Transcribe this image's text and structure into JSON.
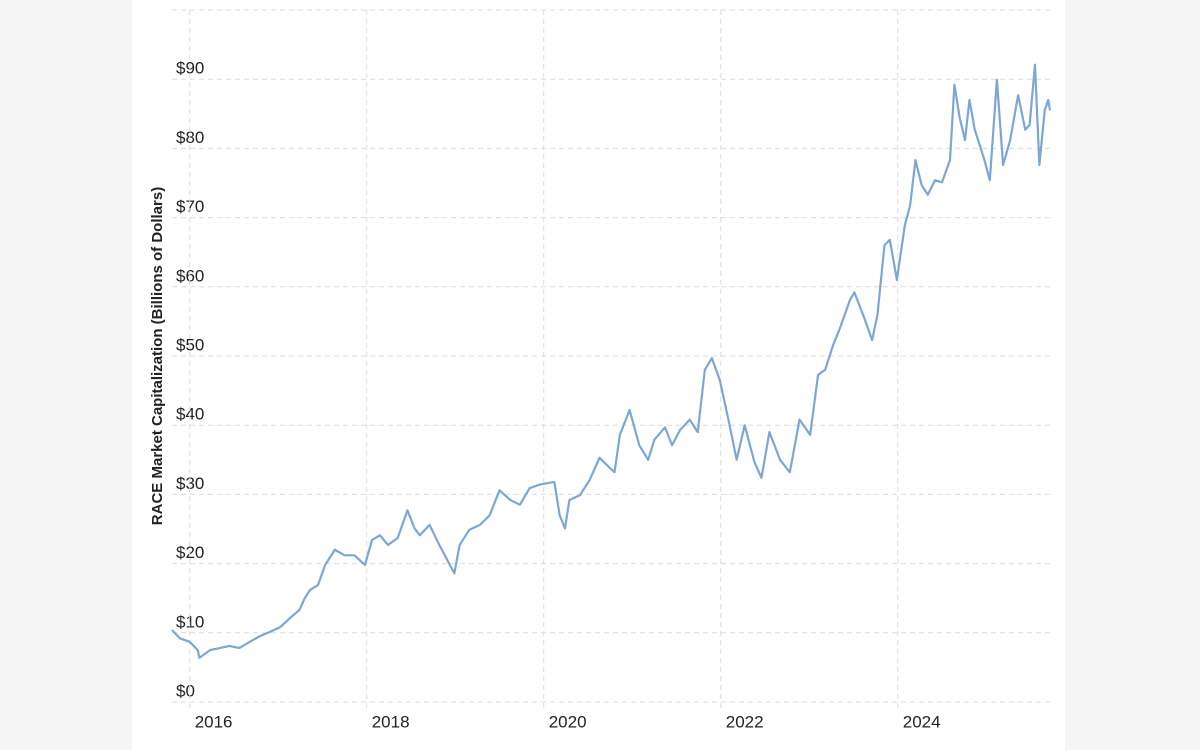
{
  "chart_data": {
    "type": "line",
    "y_axis_label": "RACE Market Capitalization (Billions of Dollars)",
    "xlim": [
      2015.8,
      2025.72
    ],
    "xticks": [
      2016,
      2018,
      2020,
      2022,
      2024
    ],
    "ylim": [
      0,
      100
    ],
    "yticks": [
      {
        "value": 0,
        "label": "$0"
      },
      {
        "value": 10,
        "label": "$10"
      },
      {
        "value": 20,
        "label": "$20"
      },
      {
        "value": 30,
        "label": "$30"
      },
      {
        "value": 40,
        "label": "$40"
      },
      {
        "value": 50,
        "label": "$50"
      },
      {
        "value": 60,
        "label": "$60"
      },
      {
        "value": 70,
        "label": "$70"
      },
      {
        "value": 80,
        "label": "$80"
      },
      {
        "value": 90,
        "label": "$90"
      }
    ],
    "grid": true,
    "series": [
      {
        "color": "#7ba7d7",
        "x": [
          2015.8,
          2015.89,
          2016.0,
          2016.09,
          2016.11,
          2016.23,
          2016.34,
          2016.45,
          2016.56,
          2016.68,
          2016.79,
          2016.9,
          2017.02,
          2017.13,
          2017.24,
          2017.3,
          2017.36,
          2017.45,
          2017.53,
          2017.64,
          2017.75,
          2017.86,
          2017.98,
          2018.06,
          2018.15,
          2018.24,
          2018.35,
          2018.46,
          2018.54,
          2018.6,
          2018.71,
          2018.82,
          2018.94,
          2018.99,
          2019.05,
          2019.16,
          2019.28,
          2019.39,
          2019.5,
          2019.62,
          2019.73,
          2019.84,
          2019.95,
          2020.12,
          2020.18,
          2020.24,
          2020.29,
          2020.41,
          2020.52,
          2020.63,
          2020.75,
          2020.8,
          2020.86,
          2020.97,
          2021.08,
          2021.18,
          2021.25,
          2021.37,
          2021.45,
          2021.54,
          2021.65,
          2021.74,
          2021.82,
          2021.9,
          2021.99,
          2022.1,
          2022.18,
          2022.27,
          2022.38,
          2022.46,
          2022.55,
          2022.67,
          2022.78,
          2022.89,
          2023.01,
          2023.1,
          2023.18,
          2023.27,
          2023.34,
          2023.46,
          2023.51,
          2023.63,
          2023.71,
          2023.77,
          2023.85,
          2023.91,
          2023.99,
          2024.08,
          2024.14,
          2024.2,
          2024.27,
          2024.34,
          2024.42,
          2024.5,
          2024.59,
          2024.64,
          2024.7,
          2024.76,
          2024.81,
          2024.87,
          2024.98,
          2025.04,
          2025.12,
          2025.19,
          2025.27,
          2025.36,
          2025.44,
          2025.49,
          2025.55,
          2025.6,
          2025.66,
          2025.7,
          2025.72
        ],
        "values": [
          10.4,
          9.2,
          8.7,
          7.5,
          6.4,
          7.5,
          7.8,
          8.1,
          7.8,
          8.7,
          9.5,
          10.1,
          10.8,
          12.1,
          13.3,
          15.0,
          16.2,
          16.9,
          19.8,
          22.0,
          21.2,
          21.2,
          19.8,
          23.4,
          24.1,
          22.7,
          23.7,
          27.7,
          25.1,
          24.1,
          25.6,
          22.7,
          19.8,
          18.6,
          22.7,
          24.9,
          25.6,
          27.0,
          30.6,
          29.2,
          28.5,
          30.9,
          31.4,
          31.8,
          27.0,
          25.1,
          29.2,
          29.9,
          32.1,
          35.3,
          33.8,
          33.2,
          38.6,
          42.2,
          37.1,
          35.0,
          37.9,
          39.7,
          37.1,
          39.3,
          40.8,
          39.0,
          48.0,
          49.7,
          46.5,
          40.0,
          35.0,
          40.0,
          34.7,
          32.4,
          39.0,
          35.0,
          33.2,
          40.8,
          38.6,
          47.3,
          48.0,
          51.6,
          53.8,
          58.1,
          59.2,
          55.2,
          52.3,
          55.9,
          66.0,
          66.8,
          61.0,
          68.9,
          71.8,
          78.3,
          74.7,
          73.3,
          75.4,
          75.1,
          78.3,
          89.2,
          84.4,
          81.2,
          87.0,
          82.7,
          78.3,
          75.4,
          89.9,
          77.6,
          81.2,
          87.7,
          82.7,
          83.4,
          92.1,
          77.6,
          85.5,
          87.0,
          85.5
        ]
      }
    ]
  }
}
